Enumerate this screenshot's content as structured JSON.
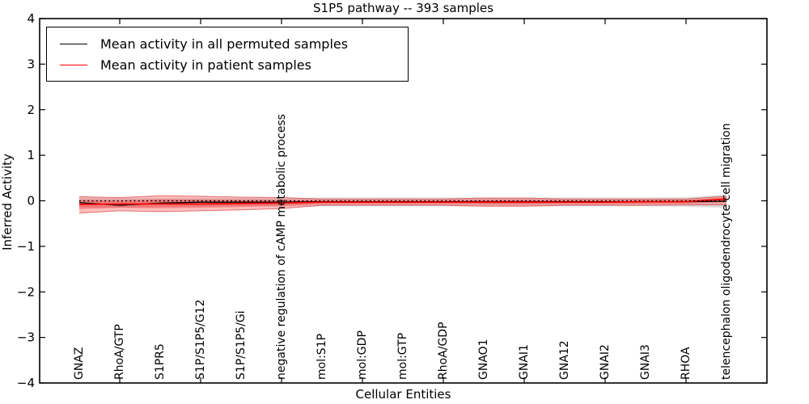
{
  "chart_data": {
    "type": "line",
    "title": "S1P5 pathway -- 393 samples",
    "xlabel": "Cellular Entities",
    "ylabel": "Inferred Activity",
    "ylim": [
      -4,
      4
    ],
    "yticks": [
      4,
      3,
      2,
      1,
      0,
      -1,
      -2,
      -3,
      -4
    ],
    "grid": false,
    "legend_position": "upper left",
    "categories": [
      "GNAZ",
      "RhoA/GTP",
      "S1PR5",
      "S1P/S1P5/G12",
      "S1P/S1P5/Gi",
      "negative regulation of cAMP metabolic process",
      "mol:S1P",
      "mol:GDP",
      "mol:GTP",
      "RhoA/GDP",
      "GNAO1",
      "GNAI1",
      "GNA12",
      "GNAI2",
      "GNAI3",
      "RHOA",
      "telencephalon oligodendrocyte cell migration"
    ],
    "series": [
      {
        "name": "Mean activity in all permuted samples",
        "color": "#000000",
        "values": [
          -0.04,
          -0.1,
          -0.05,
          -0.03,
          -0.03,
          -0.03,
          -0.02,
          -0.02,
          -0.02,
          -0.02,
          -0.02,
          -0.02,
          -0.02,
          -0.02,
          -0.02,
          -0.02,
          -0.01
        ]
      },
      {
        "name": "Mean activity in patient samples",
        "color": "#ff0000",
        "values": [
          -0.08,
          -0.07,
          -0.07,
          -0.07,
          -0.06,
          -0.05,
          -0.03,
          -0.03,
          -0.03,
          -0.03,
          -0.03,
          -0.03,
          -0.03,
          -0.03,
          -0.02,
          -0.02,
          0.04
        ]
      }
    ],
    "bands": [
      {
        "name": "permuted-samples-std-band",
        "color": "#000000",
        "opacity": 0.12,
        "top": [
          0.07,
          0.06,
          0.06,
          0.06,
          0.06,
          0.06,
          0.07,
          0.07,
          0.07,
          0.07,
          0.07,
          0.07,
          0.07,
          0.07,
          0.07,
          0.08,
          0.14
        ],
        "bottom": [
          -0.15,
          -0.16,
          -0.14,
          -0.13,
          -0.12,
          -0.12,
          -0.12,
          -0.12,
          -0.12,
          -0.12,
          -0.12,
          -0.12,
          -0.12,
          -0.12,
          -0.12,
          -0.13,
          -0.16
        ]
      },
      {
        "name": "patient-samples-std-band",
        "color": "#ff0000",
        "opacity": 0.25,
        "top": [
          0.09,
          0.07,
          0.11,
          0.1,
          0.08,
          0.07,
          0.04,
          0.04,
          0.04,
          0.04,
          0.06,
          0.06,
          0.04,
          0.04,
          0.04,
          0.04,
          0.1
        ],
        "bottom": [
          -0.27,
          -0.22,
          -0.24,
          -0.22,
          -0.2,
          -0.17,
          -0.1,
          -0.1,
          -0.1,
          -0.1,
          -0.12,
          -0.12,
          -0.1,
          -0.1,
          -0.1,
          -0.09,
          -0.09
        ]
      }
    ],
    "reference_line": {
      "y": 0,
      "style": "dotted",
      "color": "#000000"
    }
  },
  "legend": {
    "items": [
      {
        "label": "Mean activity in all permuted samples",
        "color": "#000000"
      },
      {
        "label": "Mean activity in patient samples",
        "color": "#ff0000"
      }
    ]
  }
}
